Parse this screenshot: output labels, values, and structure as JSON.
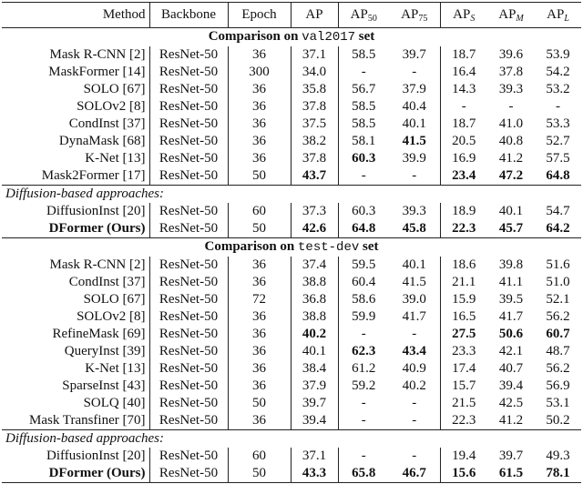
{
  "table": {
    "header": [
      {
        "text": "Method"
      },
      {
        "text": "Backbone"
      },
      {
        "text": "Epoch"
      },
      {
        "text": "AP"
      },
      {
        "text": "AP",
        "sub": "50"
      },
      {
        "text": "AP",
        "sub": "75"
      },
      {
        "text": "AP",
        "sub": "S"
      },
      {
        "text": "AP",
        "sub": "M"
      },
      {
        "text": "AP",
        "sub": "L"
      }
    ],
    "sections": [
      {
        "title": {
          "prefix": "Comparison on",
          "code": "val2017",
          "suffix": "set"
        },
        "rows": [
          [
            "Mask R-CNN [2]",
            "ResNet-50",
            "36",
            "37.1",
            "58.5",
            "39.7",
            "18.7",
            "39.6",
            "53.9"
          ],
          [
            "MaskFormer [14]",
            "ResNet-50",
            "300",
            "34.0",
            "-",
            "-",
            "16.4",
            "37.8",
            "54.2"
          ],
          [
            "SOLO [67]",
            "ResNet-50",
            "36",
            "35.8",
            "56.7",
            "37.9",
            "14.3",
            "39.3",
            "53.2"
          ],
          [
            "SOLOv2 [8]",
            "ResNet-50",
            "36",
            "37.8",
            "58.5",
            "40.4",
            "-",
            "-",
            "-"
          ],
          [
            "CondInst [37]",
            "ResNet-50",
            "36",
            "37.5",
            "58.5",
            "40.1",
            "18.7",
            "41.0",
            "53.3"
          ],
          [
            "DynaMask [68]",
            "ResNet-50",
            "36",
            "38.2",
            "58.1",
            {
              "text": "41.5",
              "bold": true
            },
            "20.5",
            "40.8",
            "52.7"
          ],
          [
            "K-Net [13]",
            "ResNet-50",
            "36",
            "37.8",
            {
              "text": "60.3",
              "bold": true
            },
            "39.9",
            "16.9",
            "41.2",
            "57.5"
          ],
          [
            "Mask2Former [17]",
            "ResNet-50",
            "50",
            {
              "text": "43.7",
              "bold": true
            },
            "-",
            "-",
            {
              "text": "23.4",
              "bold": true
            },
            {
              "text": "47.2",
              "bold": true
            },
            {
              "text": "64.8",
              "bold": true
            }
          ]
        ],
        "subtitle": "Diffusion-based approaches:",
        "sub_rows": [
          [
            "DiffusionInst [20]",
            "ResNet-50",
            "60",
            "37.3",
            "60.3",
            "39.3",
            "18.9",
            "40.1",
            "54.7"
          ],
          [
            {
              "text": "DFormer (Ours)",
              "bold": true
            },
            "ResNet-50",
            "50",
            {
              "text": "42.6",
              "bold": true
            },
            {
              "text": "64.8",
              "bold": true
            },
            {
              "text": "45.8",
              "bold": true
            },
            {
              "text": "22.3",
              "bold": true
            },
            {
              "text": "45.7",
              "bold": true
            },
            {
              "text": "64.2",
              "bold": true
            }
          ]
        ]
      },
      {
        "title": {
          "prefix": "Comparison on",
          "code": "test-dev",
          "suffix": "set"
        },
        "rows": [
          [
            "Mask R-CNN [2]",
            "ResNet-50",
            "36",
            "37.4",
            "59.5",
            "40.1",
            "18.6",
            "39.8",
            "51.6"
          ],
          [
            "CondInst [37]",
            "ResNet-50",
            "36",
            "38.8",
            "60.4",
            "41.5",
            "21.1",
            "41.1",
            "51.0"
          ],
          [
            "SOLO [67]",
            "ResNet-50",
            "72",
            "36.8",
            "58.6",
            "39.0",
            "15.9",
            "39.5",
            "52.1"
          ],
          [
            "SOLOv2 [8]",
            "ResNet-50",
            "36",
            "38.8",
            "59.9",
            "41.7",
            "16.5",
            "41.7",
            "56.2"
          ],
          [
            "RefineMask [69]",
            "ResNet-50",
            "36",
            {
              "text": "40.2",
              "bold": true
            },
            "-",
            "-",
            {
              "text": "27.5",
              "bold": true
            },
            {
              "text": "50.6",
              "bold": true
            },
            {
              "text": "60.7",
              "bold": true
            }
          ],
          [
            "QueryInst [39]",
            "ResNet-50",
            "36",
            "40.1",
            {
              "text": "62.3",
              "bold": true
            },
            {
              "text": "43.4",
              "bold": true
            },
            "23.3",
            "42.1",
            "48.7"
          ],
          [
            "K-Net [13]",
            "ResNet-50",
            "36",
            "38.4",
            "61.2",
            "40.9",
            "17.4",
            "40.7",
            "56.2"
          ],
          [
            "SparseInst [43]",
            "ResNet-50",
            "36",
            "37.9",
            "59.2",
            "40.2",
            "15.7",
            "39.4",
            "56.9"
          ],
          [
            "SOLQ [40]",
            "ResNet-50",
            "50",
            "39.7",
            "-",
            "-",
            "21.5",
            "42.5",
            "53.1"
          ],
          [
            "Mask Transfiner [70]",
            "ResNet-50",
            "36",
            "39.4",
            "-",
            "-",
            "22.3",
            "41.2",
            "50.2"
          ]
        ],
        "subtitle": "Diffusion-based approaches:",
        "sub_rows": [
          [
            "DiffusionInst [20]",
            "ResNet-50",
            "60",
            "37.1",
            "-",
            "-",
            "19.4",
            "39.7",
            "49.3"
          ],
          [
            {
              "text": "DFormer (Ours)",
              "bold": true
            },
            "ResNet-50",
            "50",
            {
              "text": "43.3",
              "bold": true
            },
            {
              "text": "65.8",
              "bold": true
            },
            {
              "text": "46.7",
              "bold": true
            },
            {
              "text": "15.6",
              "bold": true
            },
            {
              "text": "61.5",
              "bold": true
            },
            {
              "text": "78.1",
              "bold": true
            }
          ]
        ]
      }
    ]
  }
}
